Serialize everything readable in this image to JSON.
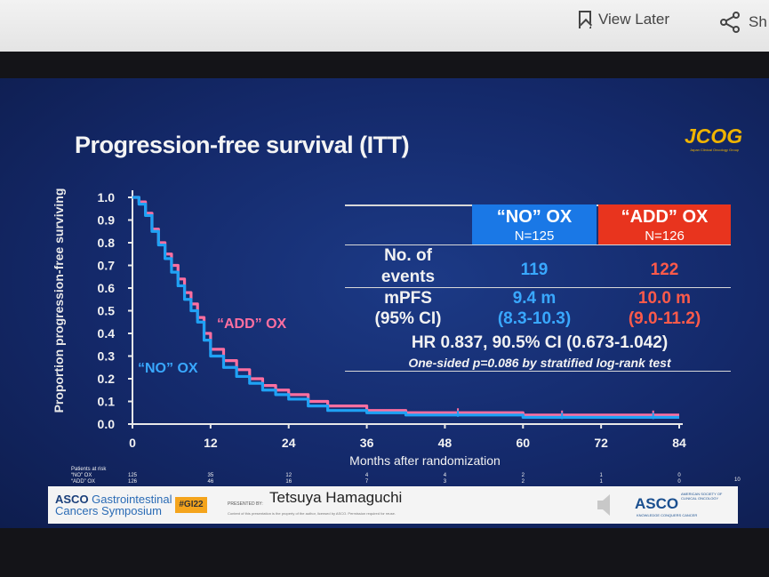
{
  "browser": {
    "view_later": "View Later",
    "share": "Sh"
  },
  "slide": {
    "title": "Progression-free survival (ITT)",
    "logo": "JCOG",
    "logo_sub": "Japan Clinical Oncology Group"
  },
  "table": {
    "no_ox": {
      "name": "“NO” OX",
      "n": "N=125",
      "events": "119",
      "mpfs": "9.4 m",
      "ci": "(8.3-10.3)"
    },
    "add_ox": {
      "name": "“ADD” OX",
      "n": "N=126",
      "events": "122",
      "mpfs": "10.0 m",
      "ci": "(9.0-11.2)"
    },
    "row_events_1": "No. of",
    "row_events_2": "events",
    "row_mpfs": "mPFS",
    "row_ci": "(95% CI)",
    "hr": "HR 0.837, 90.5% CI (0.673-1.042)",
    "pval": "One-sided p=0.086 by stratified log-rank test"
  },
  "chart_data": {
    "type": "line",
    "ylabel": "Proportion progression-free surviving",
    "xlabel": "Months after randomization",
    "xlim": [
      0,
      84
    ],
    "ylim": [
      0,
      1.0
    ],
    "x_ticks": [
      0,
      12,
      24,
      36,
      48,
      60,
      72,
      84
    ],
    "y_ticks": [
      "0.0",
      "0.1",
      "0.2",
      "0.3",
      "0.4",
      "0.5",
      "0.6",
      "0.7",
      "0.8",
      "0.9",
      "1.0"
    ],
    "series": [
      {
        "name": "“NO” OX",
        "color": "#1fa2f5",
        "x": [
          0,
          1,
          2,
          3,
          4,
          5,
          6,
          7,
          8,
          9,
          10,
          11,
          12,
          14,
          16,
          18,
          20,
          22,
          24,
          27,
          30,
          36,
          42,
          48,
          54,
          60,
          66,
          72,
          78,
          84
        ],
        "y": [
          1.0,
          0.97,
          0.92,
          0.85,
          0.79,
          0.73,
          0.67,
          0.61,
          0.55,
          0.5,
          0.45,
          0.37,
          0.3,
          0.25,
          0.21,
          0.18,
          0.15,
          0.13,
          0.11,
          0.08,
          0.06,
          0.05,
          0.04,
          0.04,
          0.04,
          0.03,
          0.03,
          0.03,
          0.03,
          0.03
        ]
      },
      {
        "name": "“ADD” OX",
        "color": "#ff6fa0",
        "x": [
          0,
          1,
          2,
          3,
          4,
          5,
          6,
          7,
          8,
          9,
          10,
          11,
          12,
          14,
          16,
          18,
          20,
          22,
          24,
          27,
          30,
          36,
          42,
          48,
          54,
          60,
          66,
          72,
          78,
          84
        ],
        "y": [
          1.0,
          0.98,
          0.93,
          0.86,
          0.8,
          0.75,
          0.7,
          0.64,
          0.58,
          0.53,
          0.47,
          0.4,
          0.33,
          0.28,
          0.24,
          0.2,
          0.17,
          0.15,
          0.13,
          0.1,
          0.08,
          0.06,
          0.05,
          0.05,
          0.05,
          0.04,
          0.04,
          0.04,
          0.04,
          0.04
        ]
      }
    ],
    "annotations": [
      "“ADD” OX",
      "“NO” OX"
    ],
    "risk_table": {
      "title": "Patients at risk",
      "rows": [
        {
          "label": "“NO” OX",
          "values": [
            "125",
            "35",
            "12",
            "4",
            "4",
            "2",
            "1",
            "0"
          ]
        },
        {
          "label": "“ADD” OX",
          "values": [
            "126",
            "46",
            "16",
            "7",
            "3",
            "2",
            "1",
            "0"
          ]
        }
      ],
      "extra": "10"
    }
  },
  "footer": {
    "symposium_1": "ASCO",
    "symposium_1b": " Gastrointestinal",
    "symposium_2": "Cancers Symposium",
    "hashtag": "#GI22",
    "presented_by": "PRESENTED BY:",
    "presenter": "Tetsuya Hamaguchi",
    "disclaimer": "Content of this presentation is the property of the author, licensed by ASCO. Permission required for reuse.",
    "asco": "ASCO",
    "asco_small": "AMERICAN SOCIETY OF CLINICAL ONCOLOGY",
    "asco_tag": "KNOWLEDGE CONQUERS CANCER"
  }
}
